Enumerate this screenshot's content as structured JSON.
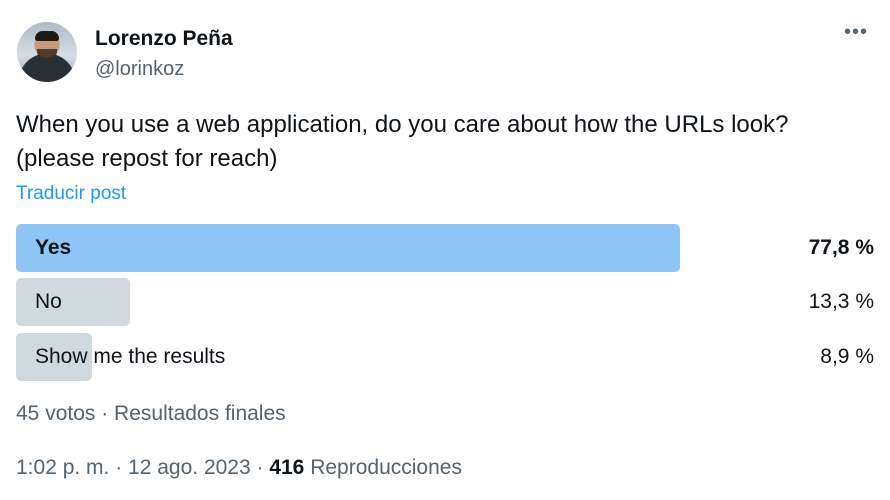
{
  "author": {
    "name": "Lorenzo Peña",
    "handle": "@lorinkoz"
  },
  "menu": {
    "more_icon": "more-horizontal-icon",
    "more_glyph": "•••"
  },
  "post": {
    "text_line1": "When you use a web application, do you care about how the URLs look?",
    "text_line2": "(please repost for reach)",
    "translate_label": "Traducir post"
  },
  "poll": {
    "options": [
      {
        "label": "Yes",
        "percent_text": "77,8 %",
        "percent": 77.8,
        "winner": true
      },
      {
        "label": "No",
        "percent_text": "13,3 %",
        "percent": 13.3,
        "winner": false
      },
      {
        "label": "Show me the results",
        "percent_text": "8,9 %",
        "percent": 8.9,
        "winner": false
      }
    ],
    "summary": "45 votos · Resultados finales"
  },
  "footer": {
    "timestamp": "1:02 p. m. · 12 ago. 2023 · ",
    "views_count": "416",
    "views_label": " Reproducciones"
  },
  "colors": {
    "winner_bar": "#8ec5f6",
    "other_bar": "#cfd9de",
    "link": "#1d9bf0",
    "secondary_text": "#536471"
  }
}
